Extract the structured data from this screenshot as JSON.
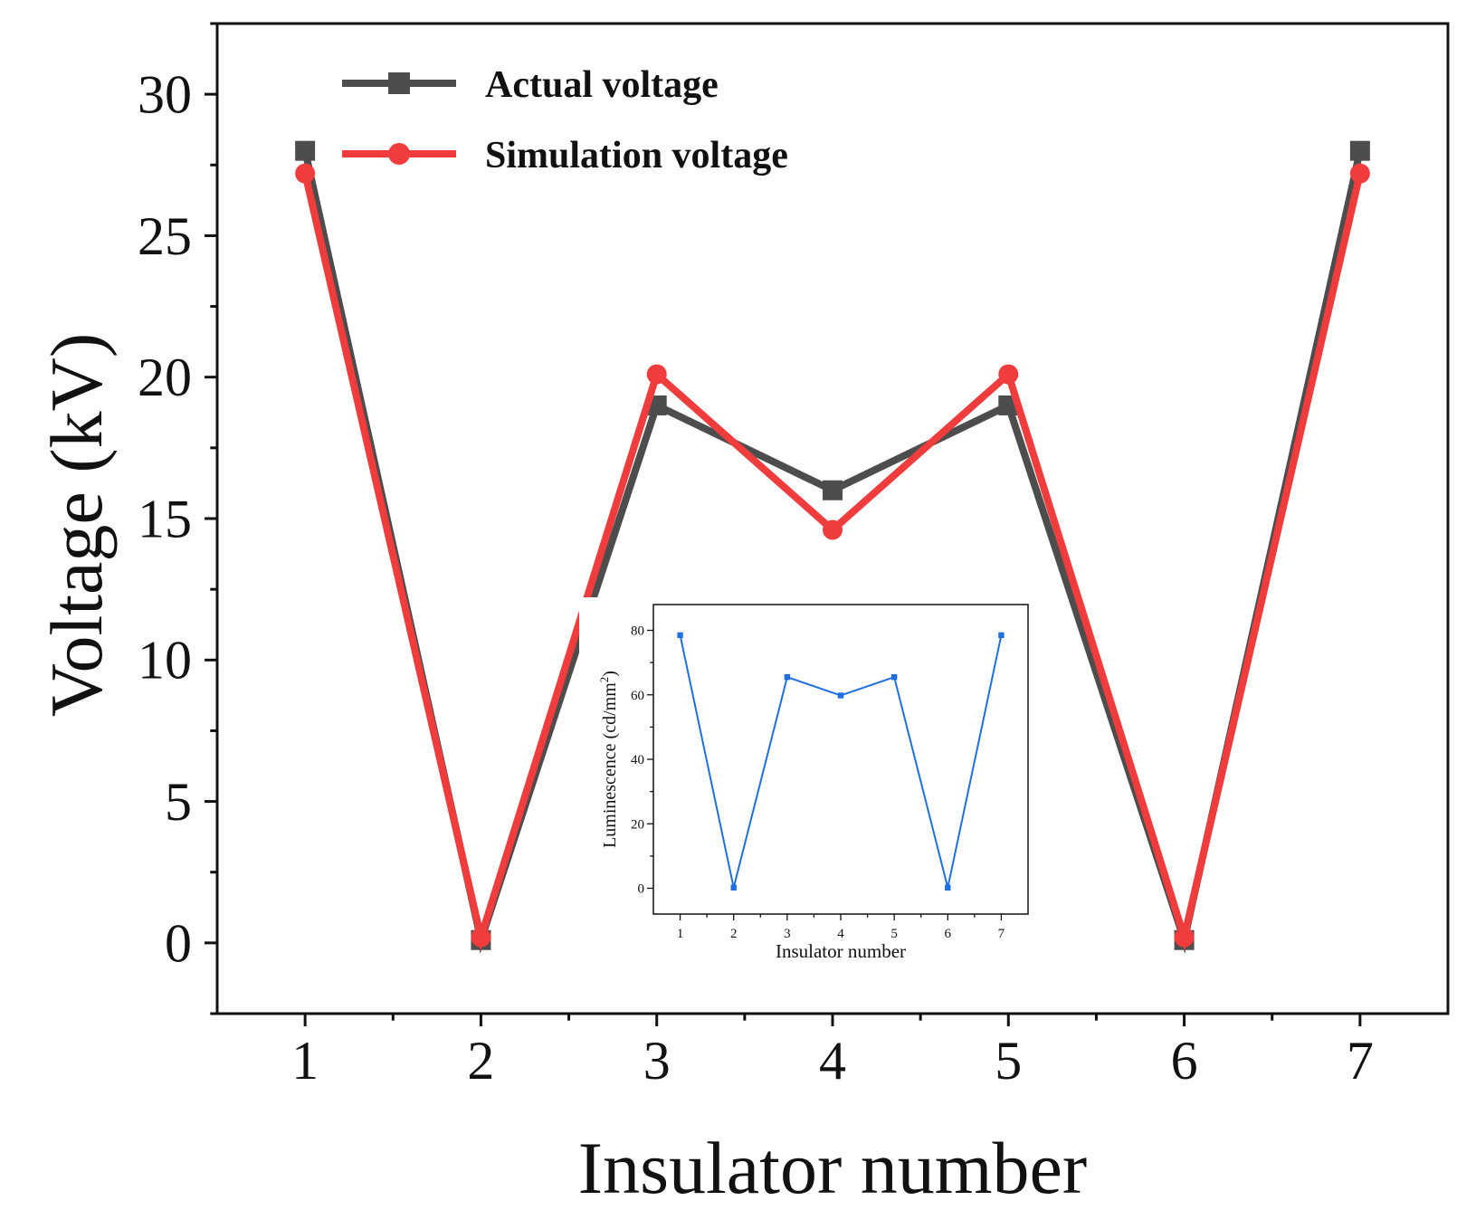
{
  "chart_data": [
    {
      "type": "line",
      "xlabel": "Insulator number",
      "ylabel": "Voltage (kV)",
      "x": [
        1,
        2,
        3,
        4,
        5,
        6,
        7
      ],
      "xlim": [
        0.5,
        7.5
      ],
      "ylim": [
        -2.5,
        32.5
      ],
      "xticks": [
        "1",
        "2",
        "3",
        "4",
        "5",
        "6",
        "7"
      ],
      "yticks": [
        "0",
        "5",
        "10",
        "15",
        "20",
        "25",
        "30"
      ],
      "grid": false,
      "legend": "top-left",
      "series": [
        {
          "name": "Actual voltage",
          "color": "#4d4d4d",
          "marker": "square",
          "values": [
            28,
            0.1,
            19,
            16,
            19,
            0.1,
            28
          ]
        },
        {
          "name": "Simulation voltage",
          "color": "#f03c3c",
          "marker": "circle",
          "values": [
            27.2,
            0.2,
            20.1,
            14.6,
            20.1,
            0.2,
            27.2
          ]
        }
      ]
    },
    {
      "type": "line",
      "inset": true,
      "xlabel": "Insulator number",
      "ylabel": "Luminescence (cd/mm",
      "ylabel_sup": "2",
      "ylabel_end": ")",
      "x": [
        1,
        2,
        3,
        4,
        5,
        6,
        7
      ],
      "xlim": [
        0.5,
        7.5
      ],
      "ylim": [
        -8,
        88
      ],
      "xticks": [
        "1",
        "2",
        "3",
        "4",
        "5",
        "6",
        "7"
      ],
      "yticks": [
        "0",
        "20",
        "40",
        "60",
        "80"
      ],
      "grid": false,
      "series": [
        {
          "color": "#1f6fe0",
          "marker": "square",
          "values": [
            78.5,
            0.2,
            65.5,
            59.8,
            65.5,
            0.2,
            78.5
          ]
        }
      ]
    }
  ]
}
